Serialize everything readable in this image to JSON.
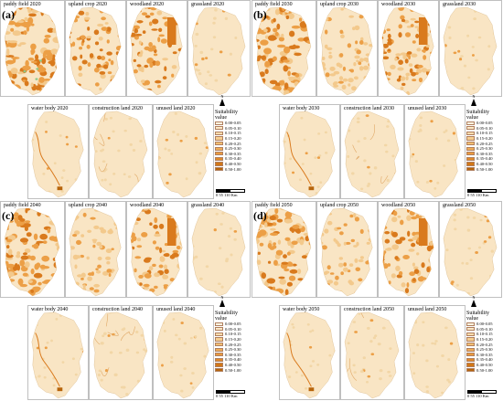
{
  "panels": [
    {
      "letter": "(a)",
      "cells": [
        "paddy field 2020",
        "upland crop 2020",
        "woodland 2020",
        "grassland 2020",
        "water body 2020",
        "construction land 2020",
        "unused land 2020"
      ]
    },
    {
      "letter": "(b)",
      "cells": [
        "paddy field 2030",
        "upland crop 2030",
        "woodland 2030",
        "grassland 2030",
        "water body 2030",
        "construction land 2030",
        "unused land 2030"
      ]
    },
    {
      "letter": "(c)",
      "cells": [
        "paddy field 2040",
        "upland crop 2040",
        "woodland 2040",
        "grassland 2040",
        "water body 2040",
        "construction land 2040",
        "unused land 2040"
      ]
    },
    {
      "letter": "(d)",
      "cells": [
        "paddy field 2050",
        "upland crop 2050",
        "woodland 2050",
        "grassland 2050",
        "water body 2050",
        "construction land 2050",
        "unused land 2050"
      ]
    }
  ],
  "legend": {
    "title": "Suitability value",
    "classes": [
      "0.00-0.05",
      "0.05-0.10",
      "0.10-0.15",
      "0.15-0.20",
      "0.20-0.25",
      "0.25-0.30",
      "0.30-0.35",
      "0.35-0.40",
      "0.40-0.50",
      "0.50-1.00"
    ],
    "colors": [
      "#fdf3df",
      "#fbe8c6",
      "#f8dcad",
      "#f5cd8f",
      "#f1bd72",
      "#eeac57",
      "#e99a3f",
      "#e08a2a",
      "#d27818",
      "#b7650c"
    ]
  },
  "north_label": "N",
  "scale_label": "0  55  110 Km",
  "colors": {
    "base": "#f9e5c4",
    "low": "#f3c98c",
    "mid": "#ec9f46",
    "high": "#d97a1d",
    "green": "#8fc98a",
    "border": "#bfbfbf"
  }
}
